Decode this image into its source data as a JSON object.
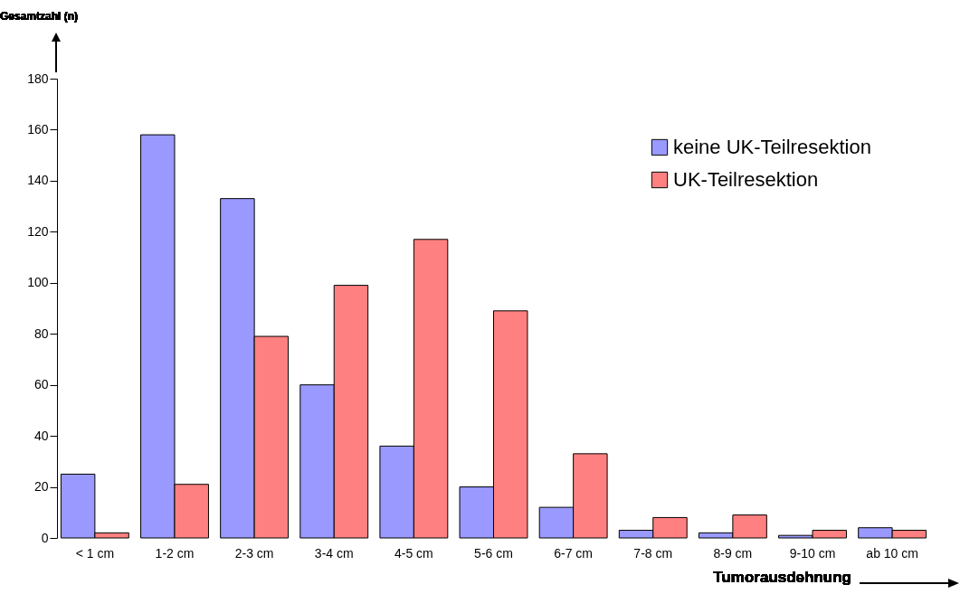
{
  "chart_data": {
    "type": "bar",
    "xlabel": "Tumorausdehnung",
    "ylabel": "Gesamtzahl (n)",
    "categories": [
      "< 1 cm",
      "1-2 cm",
      "2-3 cm",
      "3-4 cm",
      "4-5 cm",
      "5-6 cm",
      "6-7 cm",
      "7-8 cm",
      "8-9 cm",
      "9-10 cm",
      "ab 10 cm"
    ],
    "series": [
      {
        "name": "keine UK-Teilresektion",
        "color": "#9999ff",
        "values": [
          25,
          158,
          133,
          60,
          36,
          20,
          12,
          3,
          2,
          1,
          4
        ]
      },
      {
        "name": "UK-Teilresektion",
        "color": "#ff8080",
        "values": [
          2,
          21,
          79,
          99,
          117,
          89,
          33,
          8,
          9,
          3,
          3
        ]
      }
    ],
    "ylim": [
      0,
      180
    ],
    "yticks": [
      0,
      20,
      40,
      60,
      80,
      100,
      120,
      140,
      160,
      180
    ],
    "grid": false,
    "legend": "top right"
  }
}
